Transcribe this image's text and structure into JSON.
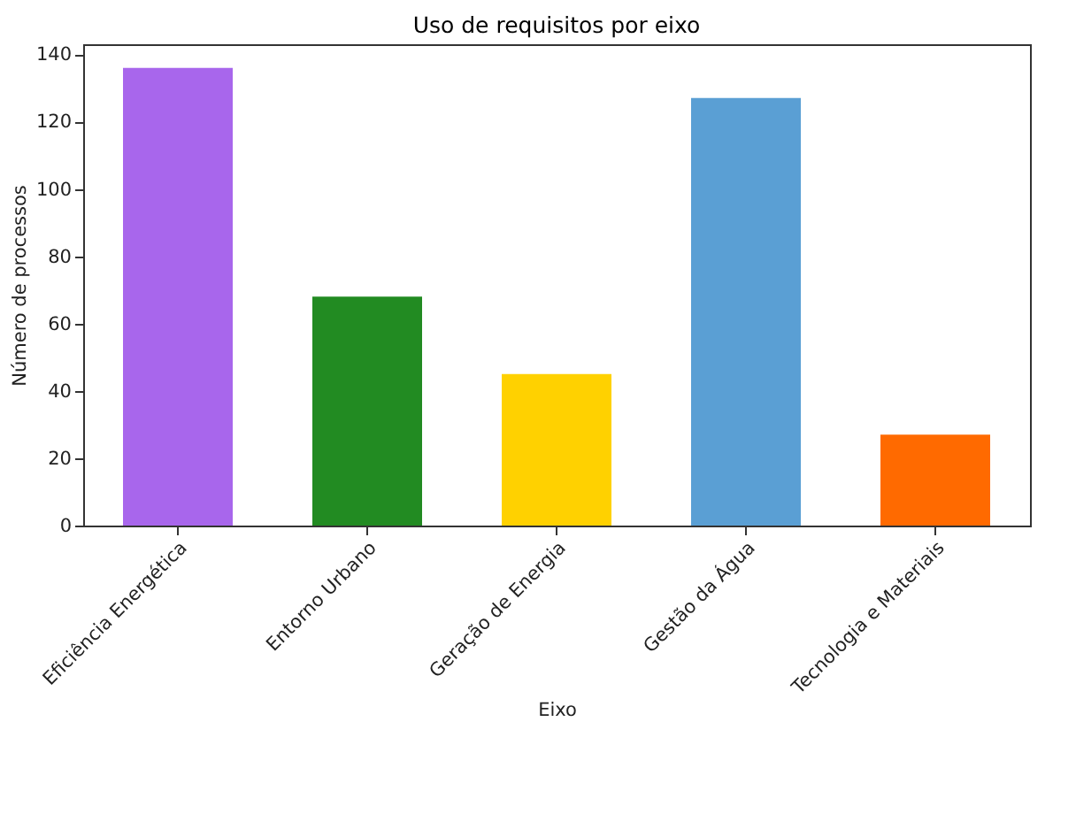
{
  "chart_data": {
    "type": "bar",
    "title": "Uso de requisitos por eixo",
    "xlabel": "Eixo",
    "ylabel": "Número de processos",
    "categories": [
      "Eficiência Energética",
      "Entorno Urbano",
      "Geração de Energia",
      "Gestão da Água",
      "Tecnologia e Materiais"
    ],
    "values": [
      136,
      68,
      45,
      127,
      27
    ],
    "colors": [
      "#a866ec",
      "#228b22",
      "#ffd100",
      "#5a9fd4",
      "#ff6a00"
    ],
    "ylim": [
      0,
      143
    ],
    "yticks": [
      0,
      20,
      40,
      60,
      80,
      100,
      120,
      140
    ],
    "grid": false
  }
}
